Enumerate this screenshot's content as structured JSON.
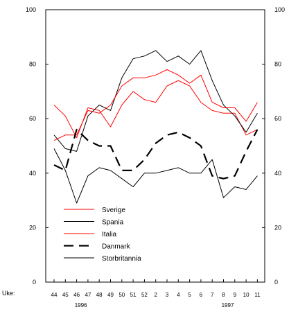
{
  "chart_data": {
    "type": "line",
    "title": "",
    "xlabel": "Uke:",
    "ylabel": "",
    "ylim": [
      0,
      100
    ],
    "yticks": [
      0,
      20,
      40,
      60,
      80,
      100
    ],
    "categories": [
      "44",
      "45",
      "46",
      "47",
      "48",
      "49",
      "50",
      "51",
      "52",
      "2",
      "3",
      "4",
      "5",
      "6",
      "7",
      "8",
      "9",
      "10",
      "11"
    ],
    "year_labels": [
      {
        "text": "1996",
        "category": "46"
      },
      {
        "text": "1997",
        "category": "8"
      }
    ],
    "legend_position": "bottom-left",
    "grid": false,
    "series": [
      {
        "name": "Sverige",
        "color": "#ff0000",
        "dash": "solid",
        "values": [
          65,
          61,
          53,
          64,
          63,
          57,
          65,
          70,
          67,
          66,
          72,
          74,
          72,
          66,
          63,
          62,
          62,
          54,
          56
        ]
      },
      {
        "name": "Spania",
        "color": "#000000",
        "dash": "solid",
        "values": [
          54,
          49,
          48,
          61,
          65,
          63,
          75,
          82,
          83,
          85,
          81,
          83,
          80,
          85,
          74,
          65,
          61,
          55,
          62
        ]
      },
      {
        "name": "Italia",
        "color": "#ff0000",
        "dash": "solid",
        "values": [
          52,
          54,
          54,
          63,
          62,
          65,
          72,
          75,
          75,
          76,
          78,
          76,
          73,
          76,
          66,
          64,
          64,
          59,
          66
        ]
      },
      {
        "name": "Danmark",
        "color": "#000000",
        "dash": "dashed",
        "values": [
          43,
          41,
          56,
          52,
          50,
          50,
          41,
          41,
          45,
          51,
          54,
          55,
          53,
          50,
          39,
          38,
          39,
          48,
          56
        ]
      },
      {
        "name": "Storbritannia",
        "color": "#000000",
        "dash": "solid",
        "values": [
          49,
          41,
          29,
          39,
          42,
          41,
          38,
          35,
          40,
          40,
          41,
          42,
          40,
          40,
          45,
          31,
          35,
          34,
          39
        ]
      }
    ]
  }
}
